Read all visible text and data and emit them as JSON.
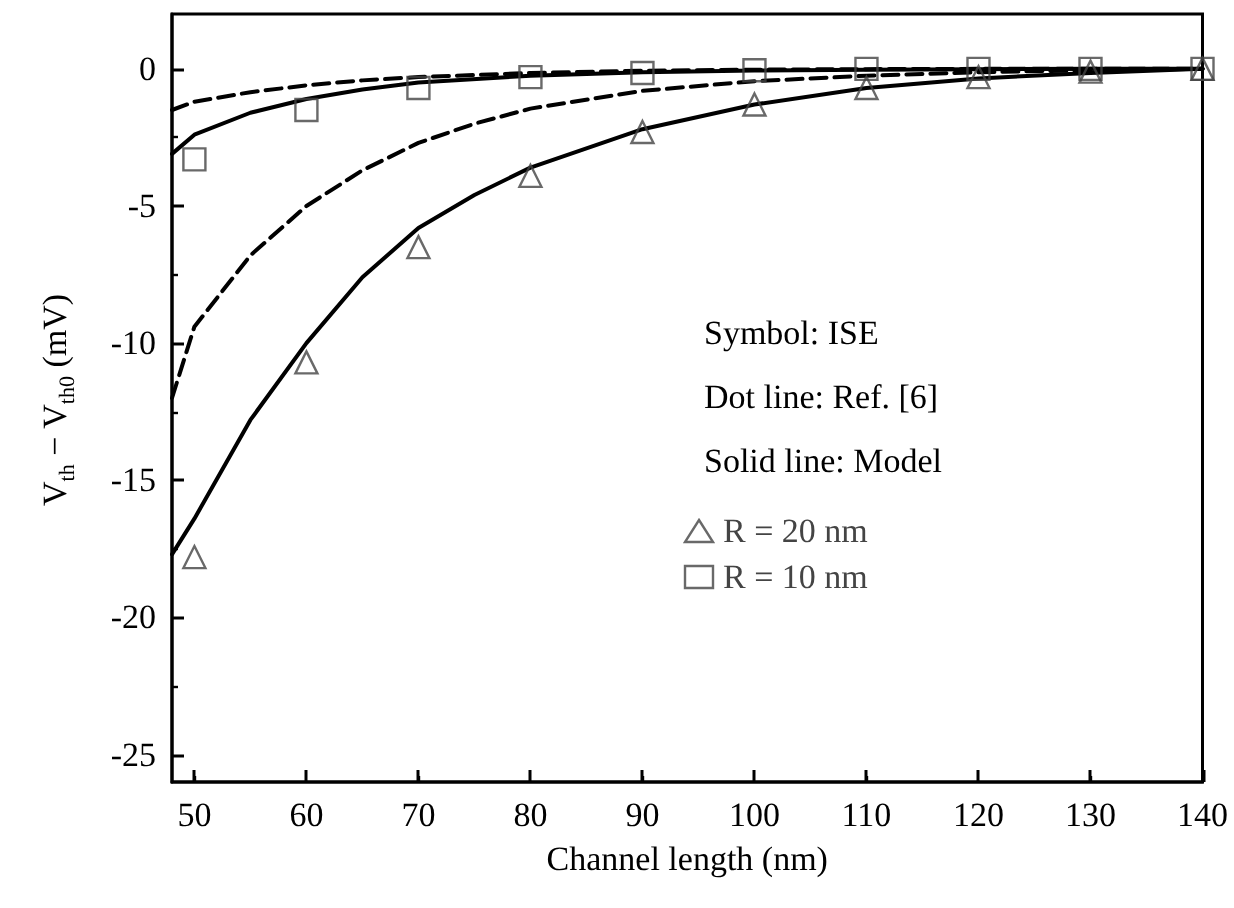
{
  "chart_data": {
    "type": "line",
    "xlabel": "Channel length (nm)",
    "ylabel": "V$_{th}$ − V$_{th0}$ (mV)",
    "xlim": [
      48,
      140
    ],
    "xticks": [
      50,
      60,
      70,
      80,
      90,
      100,
      110,
      120,
      130,
      140
    ],
    "ylim": [
      -26,
      2
    ],
    "yticks": [
      -25,
      -20,
      -15,
      -10,
      -5,
      0
    ],
    "grid": false,
    "legend": "right",
    "annotations": [
      "Symbol: ISE",
      "Dot line: Ref. [6]",
      "Solid line: Model"
    ],
    "series": [
      {
        "name": "R = 20 nm",
        "type": "scatter",
        "marker": "triangle",
        "color": "#444444",
        "x": [
          50,
          60,
          70,
          80,
          90,
          100,
          110,
          120,
          130,
          140
        ],
        "values": [
          -17.8,
          -10.7,
          -6.5,
          -3.9,
          -2.3,
          -1.3,
          -0.7,
          -0.3,
          -0.1,
          0
        ]
      },
      {
        "name": "R = 10 nm",
        "type": "scatter",
        "marker": "square",
        "color": "#444444",
        "x": [
          50,
          60,
          70,
          80,
          90,
          100,
          110,
          120,
          130,
          140
        ],
        "values": [
          -3.3,
          -1.5,
          -0.7,
          -0.3,
          -0.15,
          -0.05,
          0,
          0,
          0,
          0
        ]
      },
      {
        "marker": "none",
        "line_style": "solid",
        "color": "#000000",
        "x": [
          48,
          50,
          55,
          60,
          65,
          70,
          75,
          80,
          90,
          100,
          110,
          120,
          130,
          140
        ],
        "values": [
          -17.7,
          -16.4,
          -12.8,
          -10.0,
          -7.6,
          -5.8,
          -4.6,
          -3.6,
          -2.2,
          -1.3,
          -0.7,
          -0.35,
          -0.15,
          0
        ]
      },
      {
        "marker": "none",
        "line_style": "dashed",
        "color": "#000000",
        "x": [
          48,
          50,
          55,
          60,
          65,
          70,
          75,
          80,
          90,
          100,
          110,
          120,
          130,
          140
        ],
        "values": [
          -12.0,
          -9.4,
          -6.8,
          -5.0,
          -3.7,
          -2.7,
          -2.0,
          -1.45,
          -0.8,
          -0.45,
          -0.25,
          -0.12,
          -0.05,
          0
        ]
      },
      {
        "marker": "none",
        "line_style": "solid",
        "color": "#000000",
        "x": [
          48,
          50,
          55,
          60,
          65,
          70,
          80,
          90,
          100,
          110,
          120,
          130,
          140
        ],
        "values": [
          -3.1,
          -2.4,
          -1.6,
          -1.1,
          -0.75,
          -0.5,
          -0.25,
          -0.12,
          -0.06,
          -0.03,
          -0.01,
          0,
          0
        ]
      },
      {
        "marker": "none",
        "line_style": "dashed",
        "color": "#000000",
        "x": [
          48,
          50,
          55,
          60,
          65,
          70,
          80,
          90,
          100,
          110,
          120,
          130,
          140
        ],
        "values": [
          -1.5,
          -1.2,
          -0.85,
          -0.6,
          -0.42,
          -0.3,
          -0.15,
          -0.07,
          -0.03,
          -0.01,
          0,
          0,
          0
        ]
      }
    ]
  }
}
